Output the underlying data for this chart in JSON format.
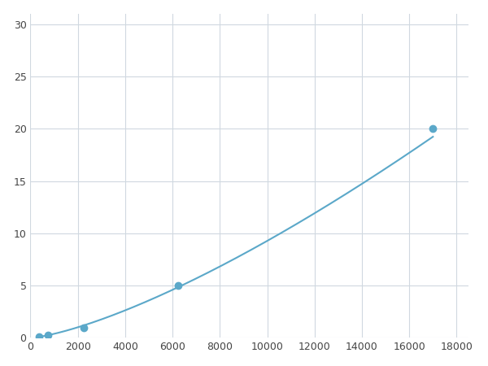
{
  "x": [
    375,
    750,
    2250,
    6250,
    17000
  ],
  "y": [
    0.1,
    0.3,
    1.0,
    5.0,
    20.0
  ],
  "line_color": "#5ba8c9",
  "marker_color": "#5ba8c9",
  "marker_size": 6,
  "xlim": [
    0,
    18500
  ],
  "ylim": [
    0,
    31
  ],
  "xticks": [
    0,
    2000,
    4000,
    6000,
    8000,
    10000,
    12000,
    14000,
    16000,
    18000
  ],
  "yticks": [
    0,
    5,
    10,
    15,
    20,
    25,
    30
  ],
  "grid_color": "#d0d8e0",
  "background_color": "#ffffff",
  "figure_bg": "#ffffff"
}
